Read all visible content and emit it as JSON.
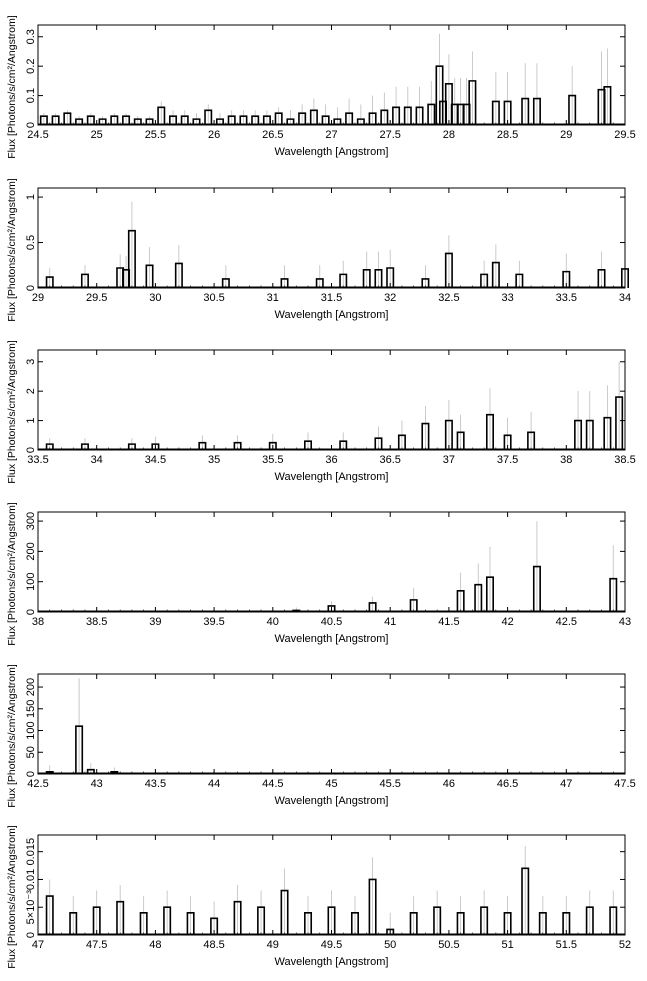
{
  "chart_data": [
    {
      "type": "step",
      "xlabel": "Wavelength [Angstrom]",
      "ylabel": "Flux [Photons/s/cm²/Angstrom]",
      "xlim": [
        24.5,
        29.5
      ],
      "ylim": [
        0,
        0.34
      ],
      "xticks": [
        "24.5",
        "25",
        "25.5",
        "26",
        "26.5",
        "27",
        "27.5",
        "28",
        "28.5",
        "29",
        "29.5"
      ],
      "yticks": [
        "0",
        "0.1",
        "0.2",
        "0.3"
      ],
      "x": [
        24.55,
        24.65,
        24.75,
        24.85,
        24.95,
        25.05,
        25.15,
        25.25,
        25.35,
        25.45,
        25.55,
        25.65,
        25.75,
        25.85,
        25.95,
        26.05,
        26.15,
        26.25,
        26.35,
        26.45,
        26.55,
        26.65,
        26.75,
        26.85,
        26.95,
        27.05,
        27.15,
        27.25,
        27.35,
        27.45,
        27.55,
        27.65,
        27.75,
        27.85,
        27.92,
        27.95,
        28.0,
        28.05,
        28.1,
        28.15,
        28.2,
        28.4,
        28.5,
        28.65,
        28.75,
        29.05,
        29.3,
        29.35
      ],
      "values": [
        0.03,
        0.03,
        0.04,
        0.02,
        0.03,
        0.02,
        0.03,
        0.03,
        0.02,
        0.02,
        0.06,
        0.03,
        0.03,
        0.02,
        0.05,
        0.02,
        0.03,
        0.03,
        0.03,
        0.03,
        0.04,
        0.02,
        0.04,
        0.05,
        0.03,
        0.02,
        0.04,
        0.02,
        0.04,
        0.05,
        0.06,
        0.06,
        0.06,
        0.07,
        0.2,
        0.08,
        0.14,
        0.07,
        0.07,
        0.07,
        0.15,
        0.08,
        0.08,
        0.09,
        0.09,
        0.1,
        0.12,
        0.13
      ],
      "errors": [
        0.01,
        0.01,
        0.01,
        0.01,
        0.01,
        0.01,
        0.01,
        0.01,
        0.01,
        0.01,
        0.02,
        0.02,
        0.02,
        0.02,
        0.02,
        0.02,
        0.02,
        0.02,
        0.02,
        0.02,
        0.02,
        0.03,
        0.03,
        0.04,
        0.04,
        0.04,
        0.05,
        0.05,
        0.06,
        0.06,
        0.07,
        0.07,
        0.07,
        0.08,
        0.11,
        0.09,
        0.1,
        0.09,
        0.09,
        0.09,
        0.1,
        0.1,
        0.1,
        0.12,
        0.12,
        0.1,
        0.13,
        0.13
      ]
    },
    {
      "type": "step",
      "xlabel": "Wavelength [Angstrom]",
      "ylabel": "Flux [Photons/s/cm²/Angstrom]",
      "xlim": [
        29,
        34
      ],
      "ylim": [
        0,
        1.1
      ],
      "xticks": [
        "29",
        "29.5",
        "30",
        "30.5",
        "31",
        "31.5",
        "32",
        "32.5",
        "33",
        "33.5",
        "34"
      ],
      "yticks": [
        "0",
        "0.5",
        "1"
      ],
      "x": [
        29.1,
        29.4,
        29.7,
        29.75,
        29.8,
        29.95,
        30.2,
        30.6,
        31.1,
        31.4,
        31.6,
        31.8,
        31.9,
        32.0,
        32.3,
        32.5,
        32.8,
        32.9,
        33.1,
        33.5,
        33.8,
        34.0
      ],
      "values": [
        0.12,
        0.15,
        0.22,
        0.2,
        0.63,
        0.25,
        0.27,
        0.1,
        0.1,
        0.1,
        0.15,
        0.2,
        0.2,
        0.22,
        0.1,
        0.38,
        0.15,
        0.28,
        0.15,
        0.18,
        0.2,
        0.21
      ],
      "errors": [
        0.1,
        0.1,
        0.15,
        0.15,
        0.32,
        0.2,
        0.2,
        0.15,
        0.15,
        0.15,
        0.15,
        0.2,
        0.2,
        0.2,
        0.15,
        0.2,
        0.15,
        0.2,
        0.15,
        0.2,
        0.2,
        0.2
      ]
    },
    {
      "type": "step",
      "xlabel": "Wavelength [Angstrom]",
      "ylabel": "Flux [Photons/s/cm²/Angstrom]",
      "xlim": [
        33.5,
        38.5
      ],
      "ylim": [
        0,
        3.4
      ],
      "xticks": [
        "33.5",
        "34",
        "34.5",
        "35",
        "35.5",
        "36",
        "36.5",
        "37",
        "37.5",
        "38",
        "38.5"
      ],
      "yticks": [
        "0",
        "1",
        "2",
        "3"
      ],
      "x": [
        33.6,
        33.9,
        34.3,
        34.5,
        34.9,
        35.2,
        35.5,
        35.8,
        36.1,
        36.4,
        36.6,
        36.8,
        37.0,
        37.1,
        37.35,
        37.5,
        37.7,
        38.1,
        38.2,
        38.35,
        38.45
      ],
      "values": [
        0.2,
        0.2,
        0.2,
        0.2,
        0.25,
        0.25,
        0.25,
        0.3,
        0.3,
        0.4,
        0.5,
        0.9,
        1.0,
        0.6,
        1.2,
        0.5,
        0.6,
        1.0,
        1.0,
        1.1,
        1.8
      ],
      "errors": [
        0.2,
        0.2,
        0.2,
        0.25,
        0.25,
        0.25,
        0.3,
        0.3,
        0.3,
        0.4,
        0.5,
        0.6,
        0.7,
        0.6,
        0.9,
        0.6,
        0.7,
        1.0,
        1.0,
        1.1,
        1.2
      ]
    },
    {
      "type": "step",
      "xlabel": "Wavelength [Angstrom]",
      "ylabel": "Flux [Photons/s/cm²/Angstrom]",
      "xlim": [
        38,
        43
      ],
      "ylim": [
        0,
        330
      ],
      "xticks": [
        "38",
        "38.5",
        "39",
        "39.5",
        "40",
        "40.5",
        "41",
        "41.5",
        "42",
        "42.5",
        "43"
      ],
      "yticks": [
        "0",
        "100",
        "200",
        "300"
      ],
      "x": [
        40.2,
        40.5,
        40.85,
        41.2,
        41.6,
        41.75,
        41.85,
        42.25,
        42.9
      ],
      "values": [
        5,
        20,
        30,
        40,
        70,
        90,
        115,
        150,
        110
      ],
      "errors": [
        10,
        15,
        20,
        40,
        60,
        70,
        100,
        150,
        110
      ]
    },
    {
      "type": "step",
      "xlabel": "Wavelength [Angstrom]",
      "ylabel": "Flux [Photons/s/cm²/Angstrom]",
      "xlim": [
        42.5,
        47.5
      ],
      "ylim": [
        0,
        230
      ],
      "xticks": [
        "42.5",
        "43",
        "43.5",
        "44",
        "44.5",
        "45",
        "45.5",
        "46",
        "46.5",
        "47",
        "47.5"
      ],
      "yticks": [
        "0",
        "50",
        "100",
        "150",
        "200"
      ],
      "x": [
        42.6,
        42.85,
        42.95,
        43.15
      ],
      "values": [
        5,
        110,
        10,
        5
      ],
      "errors": [
        15,
        110,
        15,
        10
      ]
    },
    {
      "type": "step",
      "xlabel": "Wavelength [Angstrom]",
      "ylabel": "Flux [Photons/s/cm²/Angstrom]",
      "xlim": [
        47,
        52
      ],
      "ylim": [
        0,
        0.018
      ],
      "xticks": [
        "47",
        "47.5",
        "48",
        "48.5",
        "49",
        "49.5",
        "50",
        "50.5",
        "51",
        "51.5",
        "52"
      ],
      "yticks": [
        "0",
        "5×10⁻³",
        "0.01",
        "0.015"
      ],
      "x": [
        47.1,
        47.3,
        47.5,
        47.7,
        47.9,
        48.1,
        48.3,
        48.5,
        48.7,
        48.9,
        49.1,
        49.3,
        49.5,
        49.7,
        49.85,
        50.0,
        50.2,
        50.4,
        50.6,
        50.8,
        51.0,
        51.15,
        51.3,
        51.5,
        51.7,
        51.9
      ],
      "values": [
        0.007,
        0.004,
        0.005,
        0.006,
        0.004,
        0.005,
        0.004,
        0.003,
        0.006,
        0.005,
        0.008,
        0.004,
        0.005,
        0.004,
        0.01,
        0.001,
        0.004,
        0.005,
        0.004,
        0.005,
        0.004,
        0.012,
        0.004,
        0.004,
        0.005,
        0.005
      ],
      "errors": [
        0.003,
        0.003,
        0.003,
        0.003,
        0.003,
        0.003,
        0.003,
        0.003,
        0.003,
        0.003,
        0.004,
        0.003,
        0.003,
        0.003,
        0.004,
        0.003,
        0.003,
        0.003,
        0.003,
        0.003,
        0.003,
        0.004,
        0.003,
        0.003,
        0.003,
        0.003
      ]
    }
  ]
}
